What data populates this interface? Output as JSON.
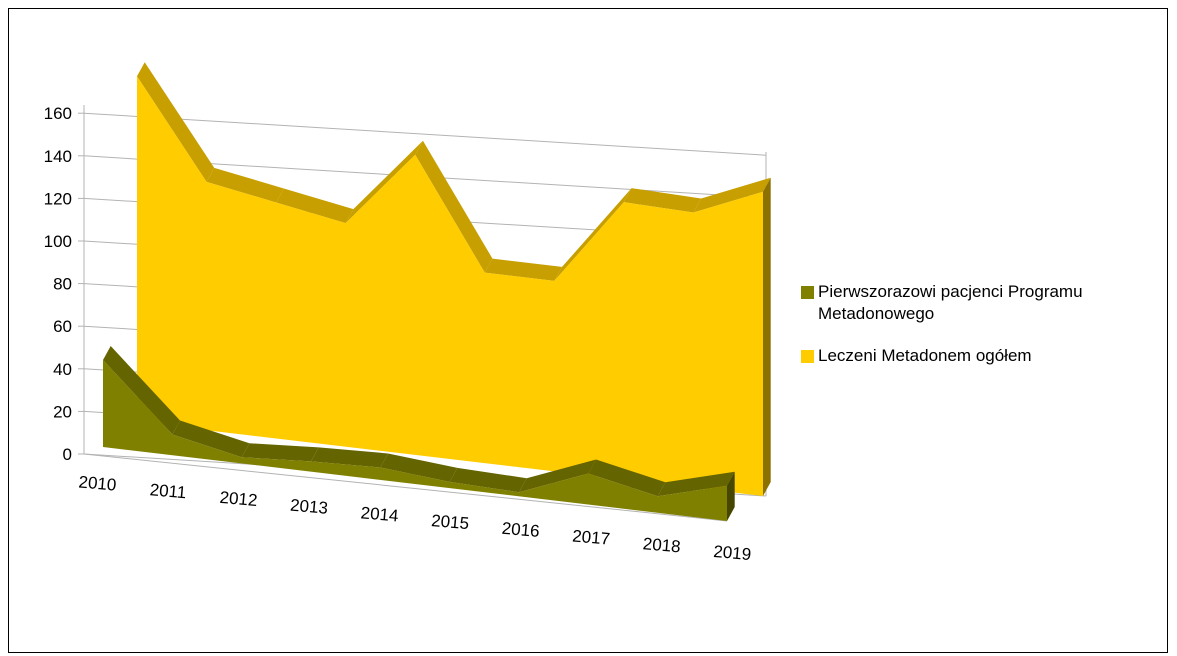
{
  "chart_data": {
    "type": "area",
    "style": "3d",
    "categories": [
      "2010",
      "2011",
      "2012",
      "2013",
      "2014",
      "2015",
      "2016",
      "2017",
      "2018",
      "2019"
    ],
    "series": [
      {
        "name": "Pierwszorazowi pacjenci Programu Metadonowego",
        "values": [
          42,
          10,
          3,
          5,
          6,
          3,
          2,
          15,
          8,
          17
        ],
        "color": "#808000"
      },
      {
        "name": "Leczeni Metadonem ogółem",
        "values": [
          167,
          120,
          114,
          108,
          145,
          92,
          92,
          134,
          133,
          147
        ],
        "color": "#FFCC00"
      }
    ],
    "y_ticks": [
      "0",
      "20",
      "40",
      "60",
      "80",
      "100",
      "120",
      "140",
      "160"
    ],
    "ylim": [
      0,
      160
    ],
    "grid": true,
    "legend_position": "right"
  },
  "legend": {
    "items": [
      {
        "line1": "Pierwszorazowi pacjenci Programu",
        "line2": "Metadonowego",
        "color": "#808000"
      },
      {
        "line1": "Leczeni Metadonem ogółem",
        "line2": "",
        "color": "#FFCC00"
      }
    ]
  }
}
